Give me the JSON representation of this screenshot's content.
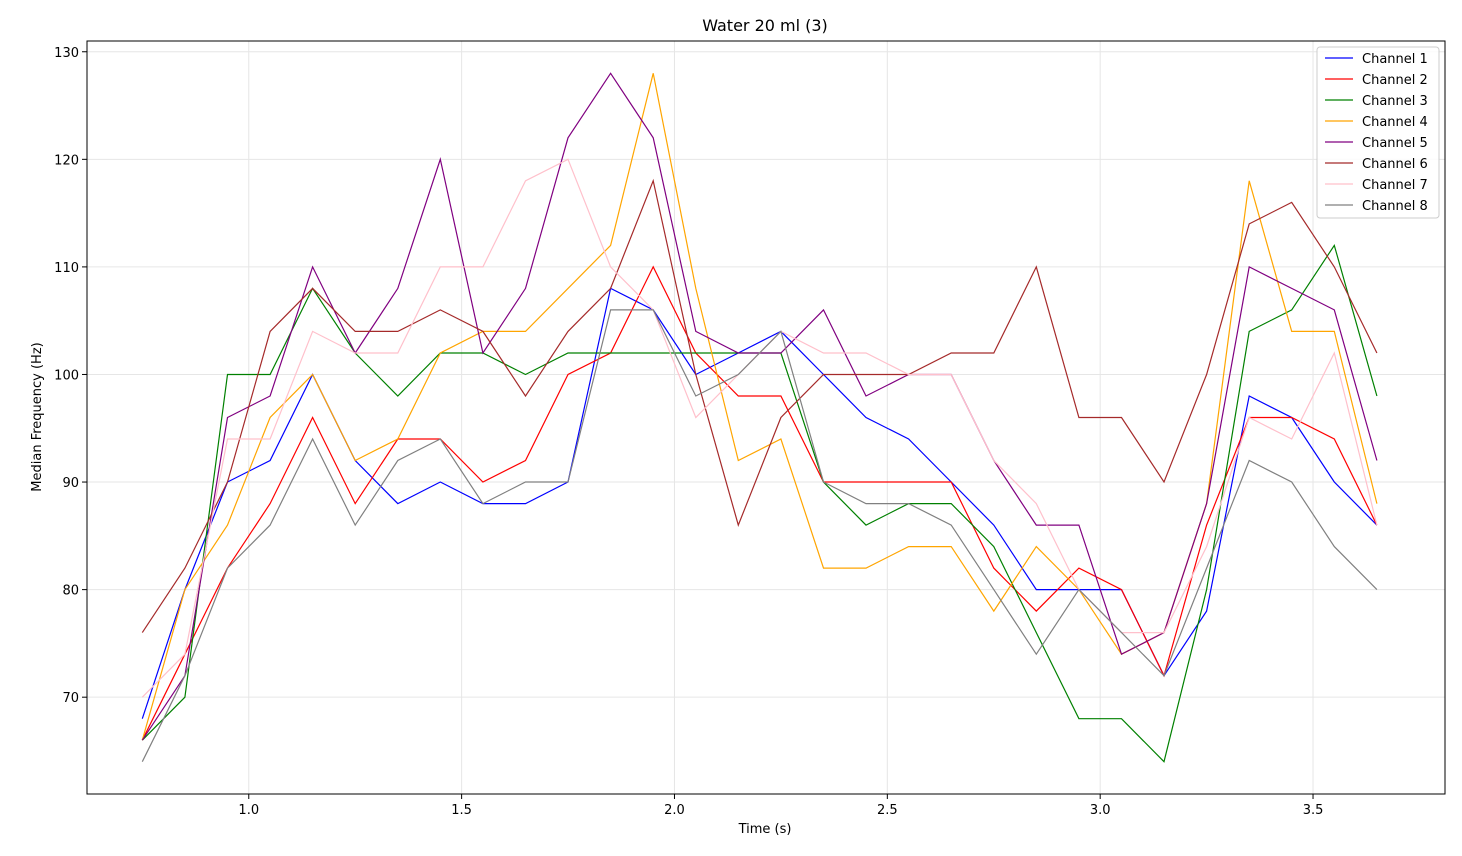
{
  "chart_data": {
    "type": "line",
    "title": "Water 20 ml (3)",
    "xlabel": "Time (s)",
    "ylabel": "Median Frequency (Hz)",
    "xlim": [
      0.62,
      3.81
    ],
    "ylim": [
      61,
      131
    ],
    "xticks": [
      1.0,
      1.5,
      2.0,
      2.5,
      3.0,
      3.5
    ],
    "xtick_labels": [
      "1.0",
      "1.5",
      "2.0",
      "2.5",
      "3.0",
      "3.5"
    ],
    "yticks": [
      70,
      80,
      90,
      100,
      110,
      120,
      130
    ],
    "ytick_labels": [
      "70",
      "80",
      "90",
      "100",
      "110",
      "120",
      "130"
    ],
    "grid": true,
    "legend_position": "top-right",
    "x": [
      0.75,
      0.85,
      0.95,
      1.05,
      1.15,
      1.25,
      1.35,
      1.45,
      1.55,
      1.65,
      1.75,
      1.85,
      1.95,
      2.05,
      2.15,
      2.25,
      2.35,
      2.45,
      2.55,
      2.65,
      2.75,
      2.85,
      2.95,
      3.05,
      3.15,
      3.25,
      3.35,
      3.45,
      3.55,
      3.65
    ],
    "series": [
      {
        "name": "Channel 1",
        "color": "#0000ff",
        "values": [
          68,
          80,
          90,
          92,
          100,
          92,
          88,
          90,
          88,
          88,
          90,
          108,
          106,
          100,
          102,
          104,
          100,
          96,
          94,
          90,
          86,
          80,
          80,
          80,
          72,
          78,
          98,
          96,
          90,
          86
        ]
      },
      {
        "name": "Channel 2",
        "color": "#ff0000",
        "values": [
          66,
          74,
          82,
          88,
          96,
          88,
          94,
          94,
          90,
          92,
          100,
          102,
          110,
          102,
          98,
          98,
          90,
          90,
          90,
          90,
          82,
          78,
          82,
          80,
          72,
          86,
          96,
          96,
          94,
          86
        ]
      },
      {
        "name": "Channel 3",
        "color": "#008000",
        "values": [
          66,
          70,
          100,
          100,
          108,
          102,
          98,
          102,
          102,
          100,
          102,
          102,
          102,
          102,
          102,
          102,
          90,
          86,
          88,
          88,
          84,
          76,
          68,
          68,
          64,
          80,
          104,
          106,
          112,
          98
        ]
      },
      {
        "name": "Channel 4",
        "color": "#ffa500",
        "values": [
          66,
          80,
          86,
          96,
          100,
          92,
          94,
          102,
          104,
          104,
          108,
          112,
          128,
          108,
          92,
          94,
          82,
          82,
          84,
          84,
          78,
          84,
          80,
          74,
          76,
          88,
          118,
          104,
          104,
          88
        ]
      },
      {
        "name": "Channel 5",
        "color": "#800080",
        "values": [
          66,
          72,
          96,
          98,
          110,
          102,
          108,
          120,
          102,
          108,
          122,
          128,
          122,
          104,
          102,
          102,
          106,
          98,
          100,
          100,
          92,
          86,
          86,
          74,
          76,
          88,
          110,
          108,
          106,
          92
        ]
      },
      {
        "name": "Channel 6",
        "color": "#a52a2a",
        "values": [
          76,
          82,
          90,
          104,
          108,
          104,
          104,
          106,
          104,
          98,
          104,
          108,
          118,
          100,
          86,
          96,
          100,
          100,
          100,
          102,
          102,
          110,
          96,
          96,
          90,
          100,
          114,
          116,
          110,
          102
        ]
      },
      {
        "name": "Channel 7",
        "color": "#ffc0cb",
        "values": [
          70,
          74,
          94,
          94,
          104,
          102,
          102,
          110,
          110,
          118,
          120,
          110,
          106,
          96,
          100,
          104,
          102,
          102,
          100,
          100,
          92,
          88,
          80,
          76,
          76,
          84,
          96,
          94,
          102,
          86
        ]
      },
      {
        "name": "Channel 8",
        "color": "#808080",
        "values": [
          64,
          72,
          82,
          86,
          94,
          86,
          92,
          94,
          88,
          90,
          90,
          106,
          106,
          98,
          100,
          104,
          90,
          88,
          88,
          86,
          80,
          74,
          80,
          76,
          72,
          82,
          92,
          90,
          84,
          80
        ]
      }
    ]
  }
}
